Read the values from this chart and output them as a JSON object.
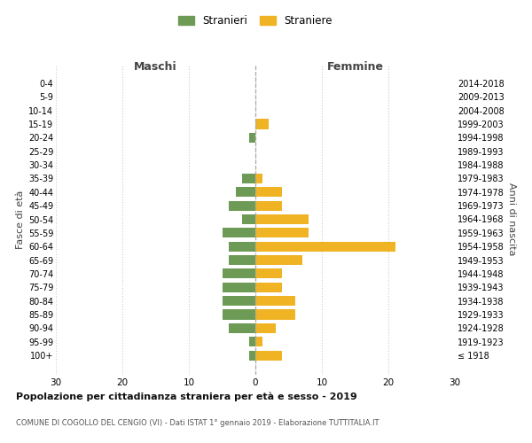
{
  "age_groups": [
    "100+",
    "95-99",
    "90-94",
    "85-89",
    "80-84",
    "75-79",
    "70-74",
    "65-69",
    "60-64",
    "55-59",
    "50-54",
    "45-49",
    "40-44",
    "35-39",
    "30-34",
    "25-29",
    "20-24",
    "15-19",
    "10-14",
    "5-9",
    "0-4"
  ],
  "birth_years": [
    "≤ 1918",
    "1919-1923",
    "1924-1928",
    "1929-1933",
    "1934-1938",
    "1939-1943",
    "1944-1948",
    "1949-1953",
    "1954-1958",
    "1959-1963",
    "1964-1968",
    "1969-1973",
    "1974-1978",
    "1979-1983",
    "1984-1988",
    "1989-1993",
    "1994-1998",
    "1999-2003",
    "2004-2008",
    "2009-2013",
    "2014-2018"
  ],
  "males": [
    0,
    0,
    0,
    0,
    1,
    0,
    0,
    2,
    3,
    4,
    2,
    5,
    4,
    4,
    5,
    5,
    5,
    5,
    4,
    1,
    1
  ],
  "females": [
    0,
    0,
    0,
    2,
    0,
    0,
    0,
    1,
    4,
    4,
    8,
    8,
    21,
    7,
    4,
    4,
    6,
    6,
    3,
    1,
    4
  ],
  "male_color": "#6d9b55",
  "female_color": "#f0b323",
  "background_color": "#ffffff",
  "grid_color": "#cccccc",
  "center_line_color": "#aaaaaa",
  "title": "Popolazione per cittadinanza straniera per età e sesso - 2019",
  "subtitle": "COMUNE DI COGOLLO DEL CENGIO (VI) - Dati ISTAT 1° gennaio 2019 - Elaborazione TUTTITALIA.IT",
  "left_label": "Maschi",
  "right_label": "Femmine",
  "ylabel": "Fasce di età",
  "right_ylabel": "Anni di nascita",
  "legend_male": "Stranieri",
  "legend_female": "Straniere",
  "xlim": 30
}
